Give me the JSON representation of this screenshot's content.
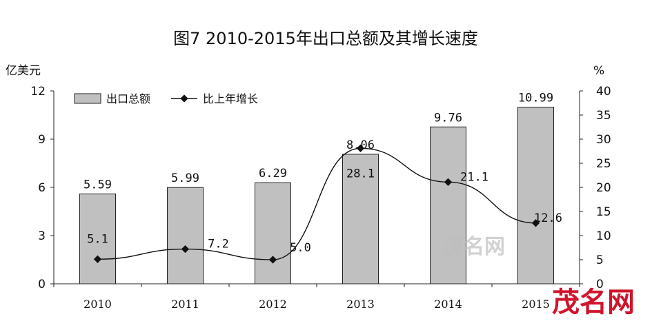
{
  "title": "图7 2010-2015年出口总额及其增长速度",
  "watermark": {
    "center": "茂名网",
    "corner": "茂名网"
  },
  "colors": {
    "bar_fill": "#c0c0c0",
    "bar_stroke": "#222222",
    "line": "#111111",
    "watermark_center": "#bdbdbd",
    "watermark_corner": "#d0142c"
  },
  "chart_data": {
    "type": "bar",
    "categories": [
      "2010",
      "2011",
      "2012",
      "2013",
      "2014",
      "2015"
    ],
    "series": [
      {
        "name": "出口总额",
        "type": "bar",
        "axis": "left",
        "values": [
          5.59,
          5.99,
          6.29,
          8.06,
          9.76,
          10.99
        ],
        "labels": [
          "5.59",
          "5.99",
          "6.29",
          "8.06",
          "9.76",
          "10.99"
        ]
      },
      {
        "name": "比上年增长",
        "type": "line",
        "axis": "right",
        "values": [
          5.1,
          7.2,
          5.0,
          28.1,
          21.1,
          12.6
        ],
        "labels": [
          "5.1",
          "7.2",
          "5.0",
          "28.1",
          "21.1",
          "12.6"
        ]
      }
    ],
    "left_axis": {
      "unit": "亿美元",
      "ylim": [
        0,
        12
      ],
      "ticks": [
        "0",
        "3",
        "6",
        "9",
        "12"
      ],
      "tick_values": [
        0,
        3,
        6,
        9,
        12
      ]
    },
    "right_axis": {
      "unit": "%",
      "ylim": [
        0,
        40
      ],
      "ticks": [
        "0",
        "5",
        "10",
        "15",
        "20",
        "25",
        "30",
        "35",
        "40"
      ],
      "tick_values": [
        0,
        5,
        10,
        15,
        20,
        25,
        30,
        35,
        40
      ]
    },
    "legend": {
      "position": "top-left",
      "entries": [
        "出口总额",
        "比上年增长"
      ]
    },
    "grid": false
  }
}
